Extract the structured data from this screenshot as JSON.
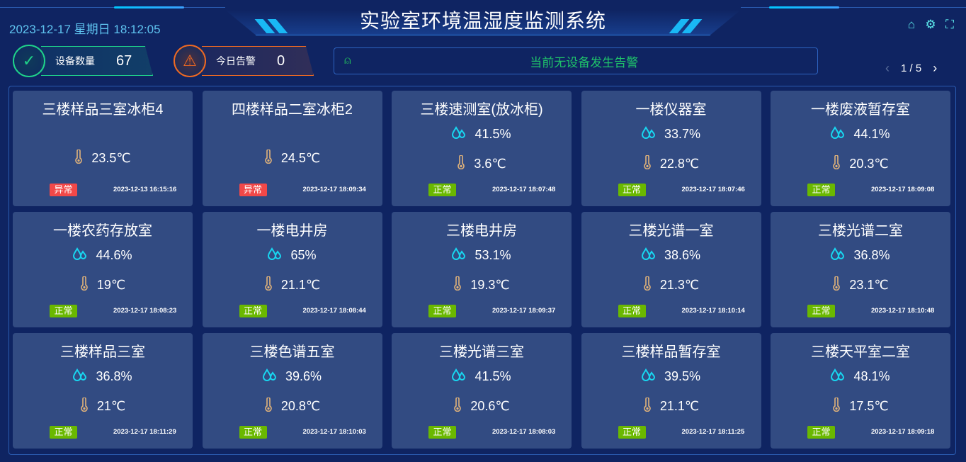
{
  "header": {
    "title": "实验室环境温湿度监测系统",
    "datetime": "2023-12-17 星期日 18:12:05",
    "icons": [
      "home-icon",
      "gear-icon",
      "fullscreen-icon"
    ]
  },
  "stats": {
    "devices": {
      "label": "设备数量",
      "value": "67",
      "color": "#1fd38a"
    },
    "alarms": {
      "label": "今日告警",
      "value": "0",
      "color": "#f06a22"
    }
  },
  "alarm_bar": {
    "text": "当前无设备发生告警",
    "icon": "alarm-light-icon"
  },
  "pager": {
    "text": "1 / 5",
    "prev": "‹",
    "next": "›"
  },
  "colors": {
    "normal": "#6ab800",
    "abnormal": "#f24848",
    "humidity": "#18d6f0",
    "temperature": "#e0b27a"
  },
  "cards": [
    {
      "name": "三楼样品三室冰柜4",
      "humidity": null,
      "temperature": "23.5℃",
      "status": "异常",
      "time": "2023-12-13 16:15:16"
    },
    {
      "name": "四楼样品二室冰柜2",
      "humidity": null,
      "temperature": "24.5℃",
      "status": "异常",
      "time": "2023-12-17 18:09:34"
    },
    {
      "name": "三楼速测室(放冰柜)",
      "humidity": "41.5%",
      "temperature": "3.6℃",
      "status": "正常",
      "time": "2023-12-17 18:07:48"
    },
    {
      "name": "一楼仪器室",
      "humidity": "33.7%",
      "temperature": "22.8℃",
      "status": "正常",
      "time": "2023-12-17 18:07:46"
    },
    {
      "name": "一楼废液暂存室",
      "humidity": "44.1%",
      "temperature": "20.3℃",
      "status": "正常",
      "time": "2023-12-17 18:09:08"
    },
    {
      "name": "一楼农药存放室",
      "humidity": "44.6%",
      "temperature": "19℃",
      "status": "正常",
      "time": "2023-12-17 18:08:23"
    },
    {
      "name": "一楼电井房",
      "humidity": "65%",
      "temperature": "21.1℃",
      "status": "正常",
      "time": "2023-12-17 18:08:44"
    },
    {
      "name": "三楼电井房",
      "humidity": "53.1%",
      "temperature": "19.3℃",
      "status": "正常",
      "time": "2023-12-17 18:09:37"
    },
    {
      "name": "三楼光谱一室",
      "humidity": "38.6%",
      "temperature": "21.3℃",
      "status": "正常",
      "time": "2023-12-17 18:10:14"
    },
    {
      "name": "三楼光谱二室",
      "humidity": "36.8%",
      "temperature": "23.1℃",
      "status": "正常",
      "time": "2023-12-17 18:10:48"
    },
    {
      "name": "三楼样品三室",
      "humidity": "36.8%",
      "temperature": "21℃",
      "status": "正常",
      "time": "2023-12-17 18:11:29"
    },
    {
      "name": "三楼色谱五室",
      "humidity": "39.6%",
      "temperature": "20.8℃",
      "status": "正常",
      "time": "2023-12-17 18:10:03"
    },
    {
      "name": "三楼光谱三室",
      "humidity": "41.5%",
      "temperature": "20.6℃",
      "status": "正常",
      "time": "2023-12-17 18:08:03"
    },
    {
      "name": "三楼样品暂存室",
      "humidity": "39.5%",
      "temperature": "21.1℃",
      "status": "正常",
      "time": "2023-12-17 18:11:25"
    },
    {
      "name": "三楼天平室二室",
      "humidity": "48.1%",
      "temperature": "17.5℃",
      "status": "正常",
      "time": "2023-12-17 18:09:18"
    }
  ]
}
